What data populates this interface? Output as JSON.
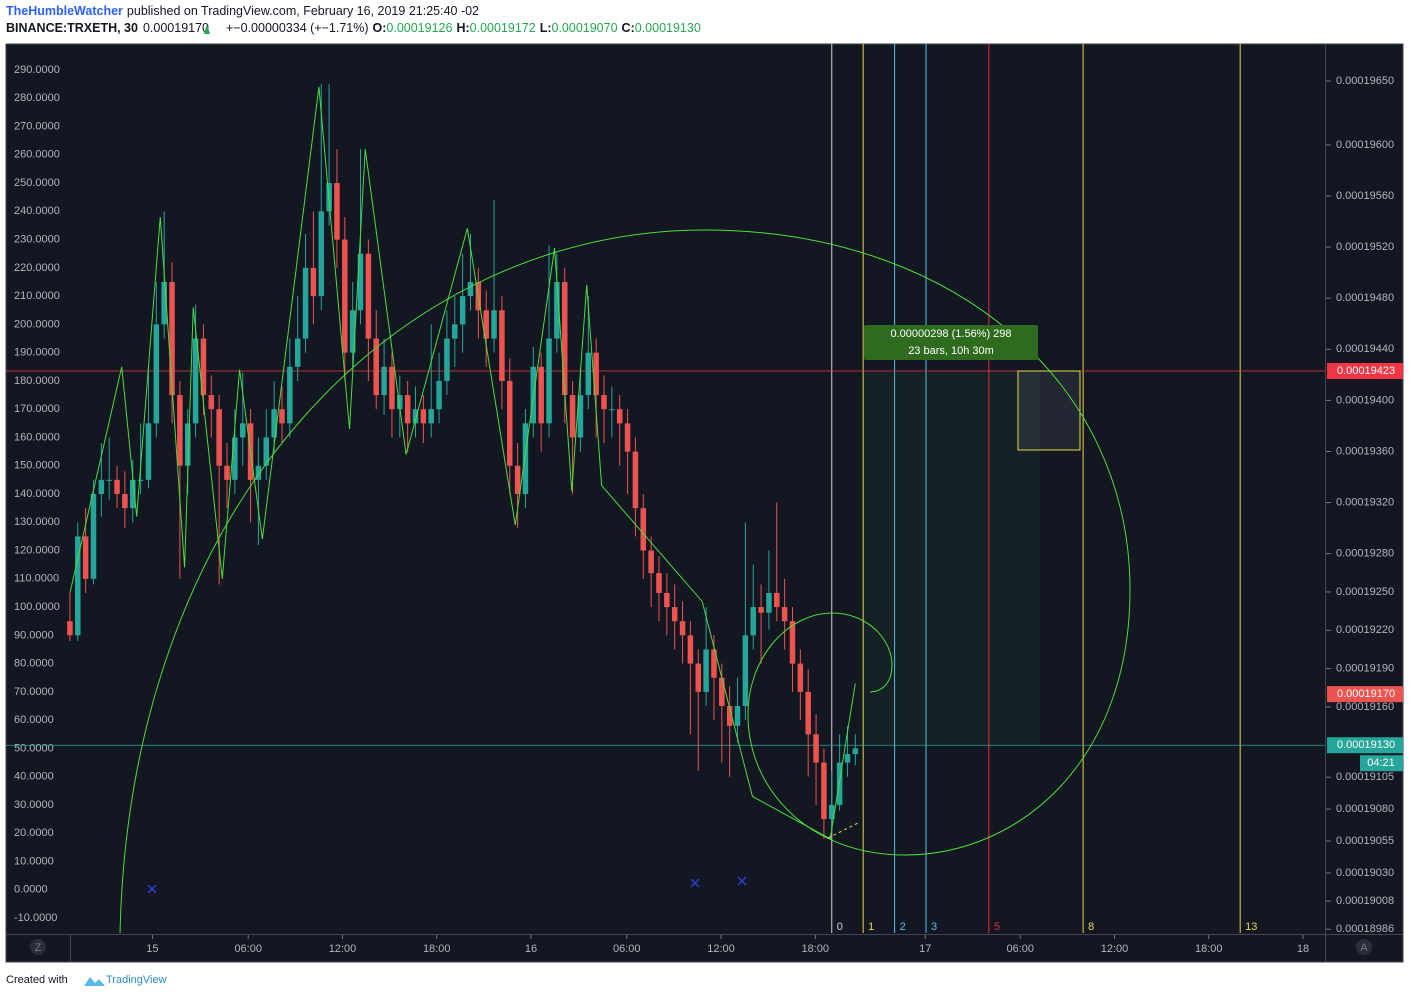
{
  "header": {
    "author": "TheHumbleWatcher",
    "published": "published on TradingView.com, February 16, 2019 21:25:40 -02",
    "symbol": "BINANCE:TRXETH, 30",
    "last": "0.00019170",
    "change": "+−0.00000334 (+−1.71%)",
    "open_label": "O:",
    "open": "0.00019126",
    "high_label": "H:",
    "high": "0.00019172",
    "low_label": "L:",
    "low": "0.00019070",
    "close_label": "C:",
    "close": "0.00019130"
  },
  "footer": {
    "created": "Created with",
    "brand": "TradingView"
  },
  "axis_buttons": [
    "Z",
    "A"
  ],
  "chart_data": {
    "type": "candlestick",
    "up_color": "#26a69a",
    "down_color": "#ef5350",
    "xlim": [
      -0.5,
      159.8
    ],
    "xticks": [
      {
        "value": 10.5,
        "label": "15"
      },
      {
        "value": 22.7,
        "label": "06:00"
      },
      {
        "value": 34.7,
        "label": "12:00"
      },
      {
        "value": 46.7,
        "label": "18:00"
      },
      {
        "value": 58.7,
        "label": "16"
      },
      {
        "value": 70.9,
        "label": "06:00"
      },
      {
        "value": 82.9,
        "label": "12:00"
      },
      {
        "value": 94.9,
        "label": "18:00"
      },
      {
        "value": 108.9,
        "label": "17"
      },
      {
        "value": 121,
        "label": "06:00"
      },
      {
        "value": 133,
        "label": "12:00"
      },
      {
        "value": 145,
        "label": "18:00"
      },
      {
        "value": 157,
        "label": "18"
      }
    ],
    "ylim": [
      -15.3,
      299.2
    ],
    "yticks": [
      {
        "value": 290,
        "label": "290.0000"
      },
      {
        "value": 280,
        "label": "280.0000"
      },
      {
        "value": 270,
        "label": "270.0000"
      },
      {
        "value": 260,
        "label": "260.0000"
      },
      {
        "value": 250,
        "label": "250.0000"
      },
      {
        "value": 240,
        "label": "240.0000"
      },
      {
        "value": 230,
        "label": "230.0000"
      },
      {
        "value": 220,
        "label": "220.0000"
      },
      {
        "value": 210,
        "label": "210.0000"
      },
      {
        "value": 200,
        "label": "200.0000"
      },
      {
        "value": 190,
        "label": "190.0000"
      },
      {
        "value": 180,
        "label": "180.0000"
      },
      {
        "value": 170,
        "label": "170.0000"
      },
      {
        "value": 160,
        "label": "160.0000"
      },
      {
        "value": 150,
        "label": "150.0000"
      },
      {
        "value": 140,
        "label": "140.0000"
      },
      {
        "value": 130,
        "label": "130.0000"
      },
      {
        "value": 120,
        "label": "120.0000"
      },
      {
        "value": 110,
        "label": "110.0000"
      },
      {
        "value": 100,
        "label": "100.0000"
      },
      {
        "value": 90,
        "label": "90.0000"
      },
      {
        "value": 80,
        "label": "80.0000"
      },
      {
        "value": 70,
        "label": "70.0000"
      },
      {
        "value": 60,
        "label": "60.0000"
      },
      {
        "value": 50,
        "label": "50.0000"
      },
      {
        "value": 40,
        "label": "40.0000"
      },
      {
        "value": 30,
        "label": "30.0000"
      },
      {
        "value": 20,
        "label": "20.0000"
      },
      {
        "value": 10,
        "label": "10.0000"
      },
      {
        "value": 0,
        "label": "0.0000"
      },
      {
        "value": -10,
        "label": "-10.0000"
      }
    ],
    "y2lim": [
      0.00018983,
      0.00019679
    ],
    "y2ticks": [
      {
        "value": 0.0001965,
        "label": "0.00019650"
      },
      {
        "value": 0.000196,
        "label": "0.00019600"
      },
      {
        "value": 0.0001956,
        "label": "0.00019560"
      },
      {
        "value": 0.0001952,
        "label": "0.00019520"
      },
      {
        "value": 0.0001948,
        "label": "0.00019480"
      },
      {
        "value": 0.0001944,
        "label": "0.00019440"
      },
      {
        "value": 0.000194,
        "label": "0.00019400"
      },
      {
        "value": 0.0001936,
        "label": "0.00019360"
      },
      {
        "value": 0.0001932,
        "label": "0.00019320"
      },
      {
        "value": 0.0001928,
        "label": "0.00019280"
      },
      {
        "value": 0.0001925,
        "label": "0.00019250"
      },
      {
        "value": 0.0001922,
        "label": "0.00019220"
      },
      {
        "value": 0.0001919,
        "label": "0.00019190"
      },
      {
        "value": 0.0001916,
        "label": "0.00019160"
      },
      {
        "value": 0.00019105,
        "label": "0.00019105"
      },
      {
        "value": 0.0001908,
        "label": "0.00019080"
      },
      {
        "value": 0.00019055,
        "label": "0.00019055"
      },
      {
        "value": 0.0001903,
        "label": "0.00019030"
      },
      {
        "value": 0.00019008,
        "label": "0.00019008"
      },
      {
        "value": 0.00018986,
        "label": "0.00018986"
      }
    ],
    "candles": [
      [
        95,
        105,
        88,
        90
      ],
      [
        90,
        130,
        88,
        125
      ],
      [
        125,
        135,
        105,
        110
      ],
      [
        110,
        145,
        108,
        140
      ],
      [
        140,
        158,
        132,
        145
      ],
      [
        145,
        160,
        138,
        145
      ],
      [
        145,
        150,
        135,
        140
      ],
      [
        140,
        148,
        128,
        135
      ],
      [
        135,
        152,
        130,
        145
      ],
      [
        145,
        165,
        140,
        145
      ],
      [
        145,
        185,
        142,
        165
      ],
      [
        165,
        215,
        160,
        200
      ],
      [
        200,
        240,
        195,
        215
      ],
      [
        215,
        222,
        165,
        175
      ],
      [
        175,
        180,
        110,
        150
      ],
      [
        150,
        170,
        140,
        165
      ],
      [
        165,
        207,
        160,
        195
      ],
      [
        195,
        200,
        168,
        175
      ],
      [
        175,
        182,
        160,
        170
      ],
      [
        170,
        175,
        108,
        150
      ],
      [
        150,
        158,
        135,
        145
      ],
      [
        145,
        170,
        140,
        160
      ],
      [
        160,
        183,
        150,
        165
      ],
      [
        165,
        170,
        130,
        145
      ],
      [
        145,
        160,
        122,
        150
      ],
      [
        150,
        170,
        145,
        160
      ],
      [
        160,
        180,
        155,
        170
      ],
      [
        170,
        178,
        158,
        165
      ],
      [
        165,
        195,
        160,
        185
      ],
      [
        185,
        210,
        180,
        195
      ],
      [
        195,
        232,
        190,
        220
      ],
      [
        220,
        240,
        200,
        210
      ],
      [
        210,
        285,
        205,
        240
      ],
      [
        240,
        285,
        235,
        250
      ],
      [
        250,
        262,
        220,
        230
      ],
      [
        230,
        238,
        180,
        190
      ],
      [
        190,
        215,
        185,
        205
      ],
      [
        205,
        262,
        200,
        225
      ],
      [
        225,
        230,
        180,
        195
      ],
      [
        195,
        205,
        170,
        175
      ],
      [
        175,
        195,
        168,
        185
      ],
      [
        185,
        190,
        160,
        170
      ],
      [
        170,
        182,
        160,
        175
      ],
      [
        175,
        180,
        155,
        165
      ],
      [
        165,
        178,
        160,
        170
      ],
      [
        170,
        175,
        158,
        165
      ],
      [
        165,
        200,
        160,
        170
      ],
      [
        170,
        190,
        165,
        180
      ],
      [
        180,
        205,
        175,
        195
      ],
      [
        195,
        210,
        185,
        200
      ],
      [
        200,
        225,
        190,
        210
      ],
      [
        210,
        232,
        205,
        215
      ],
      [
        215,
        220,
        195,
        205
      ],
      [
        205,
        212,
        185,
        195
      ],
      [
        195,
        244,
        190,
        205
      ],
      [
        205,
        210,
        170,
        180
      ],
      [
        180,
        188,
        140,
        150
      ],
      [
        150,
        158,
        128,
        140
      ],
      [
        140,
        170,
        135,
        165
      ],
      [
        165,
        192,
        160,
        185
      ],
      [
        185,
        190,
        155,
        165
      ],
      [
        165,
        228,
        160,
        195
      ],
      [
        195,
        225,
        190,
        215
      ],
      [
        215,
        220,
        165,
        175
      ],
      [
        175,
        180,
        140,
        160
      ],
      [
        160,
        185,
        155,
        175
      ],
      [
        175,
        210,
        170,
        190
      ],
      [
        190,
        195,
        160,
        175
      ],
      [
        175,
        182,
        158,
        170
      ],
      [
        170,
        178,
        160,
        170
      ],
      [
        170,
        175,
        150,
        165
      ],
      [
        165,
        170,
        140,
        155
      ],
      [
        155,
        160,
        125,
        135
      ],
      [
        135,
        140,
        110,
        120
      ],
      [
        120,
        125,
        100,
        112
      ],
      [
        112,
        118,
        95,
        105
      ],
      [
        105,
        112,
        90,
        100
      ],
      [
        100,
        108,
        85,
        95
      ],
      [
        95,
        102,
        80,
        90
      ],
      [
        90,
        95,
        55,
        80
      ],
      [
        80,
        85,
        42,
        70
      ],
      [
        70,
        100,
        65,
        85
      ],
      [
        85,
        90,
        60,
        75
      ],
      [
        75,
        80,
        45,
        65
      ],
      [
        65,
        72,
        40,
        58
      ],
      [
        58,
        75,
        52,
        65
      ],
      [
        65,
        130,
        60,
        90
      ],
      [
        90,
        115,
        85,
        100
      ],
      [
        100,
        108,
        80,
        98
      ],
      [
        98,
        120,
        92,
        105
      ],
      [
        105,
        137,
        95,
        100
      ],
      [
        100,
        110,
        85,
        95
      ],
      [
        95,
        100,
        70,
        80
      ],
      [
        80,
        85,
        60,
        70
      ],
      [
        70,
        78,
        40,
        55
      ],
      [
        55,
        62,
        30,
        45
      ],
      [
        45,
        50,
        18,
        25
      ],
      [
        25,
        42,
        20,
        30
      ],
      [
        30,
        55,
        28,
        45
      ],
      [
        45,
        58,
        40,
        48
      ],
      [
        48,
        55,
        44,
        50
      ]
    ],
    "zigzag": {
      "color": "#4cdd3c",
      "x": [
        0,
        6.6,
        8.5,
        11.5,
        14.6,
        15.7,
        19.4,
        21.6,
        24.5,
        31.7,
        35.6,
        37.6,
        42.8,
        50.6,
        56.7,
        61.7,
        63.9,
        65.8,
        67.7,
        80.5,
        86.9,
        96.8,
        100
      ],
      "values": [
        105,
        185,
        132,
        238,
        114,
        206,
        110,
        184,
        124,
        284,
        163,
        262,
        154,
        234,
        129,
        227,
        141,
        214,
        143,
        102,
        33,
        18,
        73
      ]
    },
    "time_zones": [
      {
        "x": 97,
        "label": "0",
        "color": "#d1d4dc"
      },
      {
        "x": 101,
        "label": "1",
        "color": "#e7d84a"
      },
      {
        "x": 105,
        "label": "2",
        "color": "#4fc3e8"
      },
      {
        "x": 109,
        "label": "3",
        "color": "#4fc3e8"
      },
      {
        "x": 117,
        "label": "5",
        "color": "#e0303b"
      },
      {
        "x": 129,
        "label": "8",
        "color": "#e7d84a"
      },
      {
        "x": 149,
        "label": "13",
        "color": "#e7d84a"
      }
    ],
    "price_lines": [
      {
        "value": 0.00019423,
        "label": "0.00019423",
        "color": "#f23645",
        "line": true
      },
      {
        "value": 0.0001917,
        "label": "0.00019170",
        "color": "#ef5350",
        "line": false
      },
      {
        "value": 0.0001913,
        "label": "0.00019130",
        "color": "#26a69a",
        "line": true
      }
    ],
    "countdown": "04:21",
    "measure": {
      "line1": "0.00000298 (1.56%) 298",
      "line2": "23 bars, 10h 30m"
    }
  }
}
